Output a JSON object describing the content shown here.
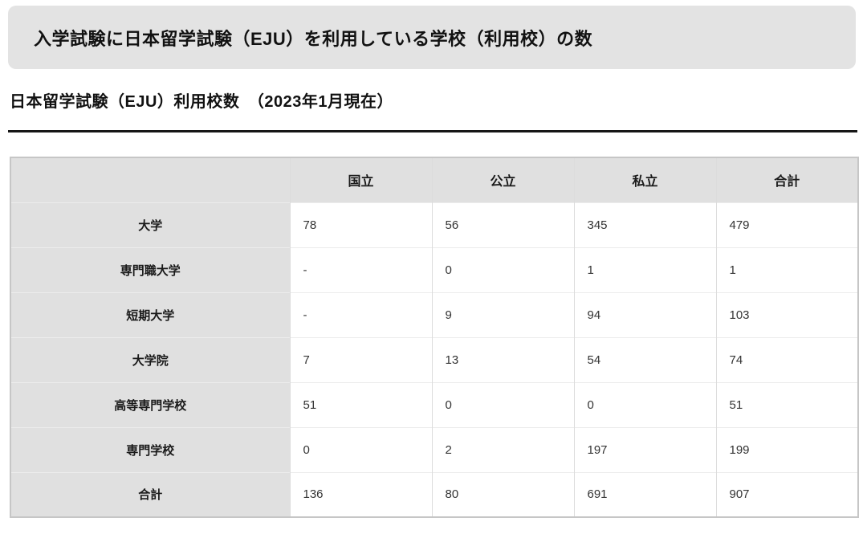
{
  "banner": {
    "title": "入学試験に日本留学試験（EJU）を利用している学校（利用校）の数"
  },
  "section": {
    "title": "日本留学試験（EJU）利用校数　（2023年1月現在）"
  },
  "colors": {
    "banner_bg": "#e3e3e3",
    "table_header_bg": "#e0e0e0",
    "row_label_bg": "#e0e0e0",
    "divider_rule": "#161616",
    "value_text": "#333333",
    "border_outer": "#c6c6c6",
    "border_vertical": "#dcdcdc",
    "border_horizontal": "#ececec"
  },
  "chart_data": {
    "type": "table",
    "title": "日本留学試験（EJU）利用校数　（2023年1月現在）",
    "columns": [
      "国立",
      "公立",
      "私立",
      "合計"
    ],
    "rows": [
      {
        "label": "大学",
        "values": [
          "78",
          "56",
          "345",
          "479"
        ]
      },
      {
        "label": "専門職大学",
        "values": [
          "-",
          "0",
          "1",
          "1"
        ]
      },
      {
        "label": "短期大学",
        "values": [
          "-",
          "9",
          "94",
          "103"
        ]
      },
      {
        "label": "大学院",
        "values": [
          "7",
          "13",
          "54",
          "74"
        ]
      },
      {
        "label": "高等専門学校",
        "values": [
          "51",
          "0",
          "0",
          "51"
        ]
      },
      {
        "label": "専門学校",
        "values": [
          "0",
          "2",
          "197",
          "199"
        ]
      },
      {
        "label": "合計",
        "values": [
          "136",
          "80",
          "691",
          "907"
        ]
      }
    ]
  }
}
